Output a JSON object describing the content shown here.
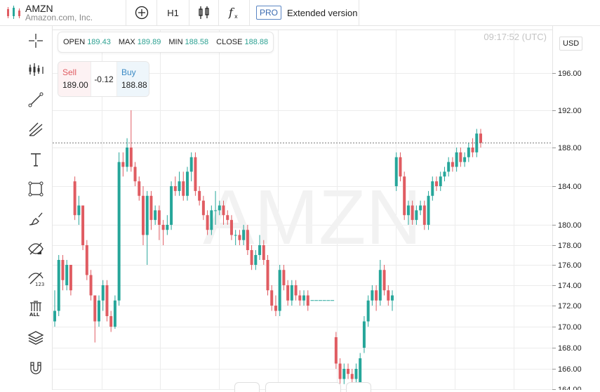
{
  "header": {
    "symbol": "AMZN",
    "company": "Amazon.com, Inc.",
    "timeframe": "H1",
    "pro_badge": "PRO",
    "extended_label": "Extended version"
  },
  "chart_header": {
    "time": "09:17:52 (UTC)",
    "currency": "USD",
    "open_label": "OPEN",
    "open_value": "189.43",
    "max_label": "MAX",
    "max_value": "189.89",
    "min_label": "MIN",
    "min_value": "188.58",
    "close_label": "CLOSE",
    "close_value": "188.88"
  },
  "trade": {
    "sell_label": "Sell",
    "sell_price": "189.00",
    "spread": "-0.12",
    "buy_label": "Buy",
    "buy_price": "188.88"
  },
  "watermark": "AMZN",
  "colors": {
    "up": "#26a69a",
    "down": "#e05c62",
    "accent": "#3a6ab0"
  },
  "chart_data": {
    "type": "candlestick",
    "y_ticks": [
      "196.00",
      "192.00",
      "188.00",
      "184.00",
      "180.00",
      "178.00",
      "176.00",
      "174.00",
      "172.00",
      "170.00",
      "168.00",
      "166.00",
      "164.00"
    ],
    "current_price": 188.5,
    "candles": [
      [
        170.5,
        171.5,
        173.5,
        170.0
      ],
      [
        171.5,
        176.5,
        177.0,
        171.0
      ],
      [
        176.5,
        174.5,
        177.0,
        173.5
      ],
      [
        174.0,
        176.0,
        176.5,
        173.5
      ],
      [
        176.0,
        173.5,
        176.0,
        173.0
      ],
      [
        184.5,
        181.0,
        185.0,
        180.5
      ],
      [
        181.0,
        182.0,
        183.0,
        180.0
      ],
      [
        182.0,
        178.0,
        182.0,
        177.5
      ],
      [
        178.0,
        175.0,
        178.5,
        174.5
      ],
      [
        175.0,
        173.0,
        175.5,
        172.5
      ],
      [
        173.0,
        170.5,
        173.0,
        168.5
      ],
      [
        170.5,
        172.5,
        173.0,
        170.0
      ],
      [
        172.5,
        174.0,
        174.5,
        171.5
      ],
      [
        174.0,
        171.0,
        174.5,
        170.5
      ],
      [
        171.0,
        170.0,
        171.5,
        169.5
      ],
      [
        170.0,
        172.5,
        173.0,
        169.8
      ],
      [
        172.5,
        186.5,
        187.5,
        172.0
      ],
      [
        186.5,
        186.0,
        187.5,
        185.0
      ],
      [
        186.0,
        188.0,
        189.0,
        185.5
      ],
      [
        188.0,
        186.0,
        192.0,
        185.5
      ],
      [
        186.0,
        184.5,
        186.5,
        184.0
      ],
      [
        184.5,
        183.0,
        185.0,
        182.5
      ],
      [
        183.0,
        179.0,
        184.0,
        178.0
      ],
      [
        179.0,
        183.0,
        183.5,
        176.0
      ],
      [
        183.0,
        180.5,
        183.5,
        179.5
      ],
      [
        180.5,
        181.5,
        182.0,
        180.0
      ],
      [
        181.5,
        180.0,
        182.0,
        178.5
      ],
      [
        180.0,
        179.5,
        180.5,
        178.0
      ],
      [
        179.5,
        180.0,
        181.0,
        179.0
      ],
      [
        180.0,
        184.0,
        184.5,
        179.5
      ],
      [
        184.0,
        183.5,
        185.0,
        183.0
      ],
      [
        183.5,
        184.5,
        185.5,
        183.0
      ],
      [
        184.5,
        183.0,
        185.5,
        182.5
      ],
      [
        183.0,
        185.5,
        186.0,
        182.5
      ],
      [
        185.5,
        187.0,
        187.5,
        184.5
      ],
      [
        187.0,
        183.5,
        187.5,
        183.0
      ],
      [
        183.5,
        182.5,
        184.0,
        182.0
      ],
      [
        182.5,
        181.0,
        183.0,
        180.5
      ],
      [
        181.0,
        179.5,
        181.5,
        179.0
      ],
      [
        179.5,
        181.5,
        182.0,
        179.0
      ],
      [
        181.5,
        181.5,
        183.5,
        180.0
      ],
      [
        181.5,
        182.0,
        182.5,
        181.0
      ],
      [
        182.0,
        181.0,
        182.5,
        180.0
      ],
      [
        181.0,
        180.5,
        181.5,
        180.0
      ],
      [
        180.5,
        179.0,
        181.0,
        178.5
      ],
      [
        179.0,
        179.0,
        179.5,
        178.0
      ],
      [
        179.0,
        178.5,
        179.5,
        178.0
      ],
      [
        178.5,
        179.5,
        180.0,
        178.0
      ],
      [
        179.5,
        177.5,
        180.0,
        177.0
      ],
      [
        177.5,
        176.0,
        178.0,
        175.5
      ],
      [
        176.0,
        177.0,
        177.5,
        175.5
      ],
      [
        177.0,
        178.0,
        179.0,
        176.5
      ],
      [
        178.0,
        176.5,
        178.5,
        176.0
      ],
      [
        176.5,
        173.5,
        177.0,
        173.0
      ],
      [
        173.5,
        172.0,
        174.0,
        171.5
      ],
      [
        172.0,
        171.5,
        173.0,
        171.0
      ],
      [
        171.5,
        175.5,
        176.0,
        171.0
      ],
      [
        175.5,
        174.0,
        176.0,
        173.5
      ],
      [
        174.0,
        172.5,
        174.5,
        172.0
      ],
      [
        172.5,
        174.0,
        174.5,
        172.0
      ],
      [
        174.0,
        173.0,
        174.5,
        172.5
      ],
      [
        173.0,
        172.5,
        173.5,
        172.0
      ],
      [
        172.5,
        173.0,
        173.5,
        172.0
      ],
      [
        173.0,
        172.0,
        173.5,
        171.5
      ],
      [
        172.5,
        172.5,
        172.5,
        172.5
      ],
      [
        172.5,
        172.5,
        172.5,
        172.5
      ],
      [
        172.5,
        172.5,
        172.5,
        172.5
      ],
      [
        172.5,
        172.5,
        172.5,
        172.5
      ],
      [
        172.5,
        172.5,
        172.5,
        172.5
      ],
      [
        172.5,
        172.5,
        172.5,
        172.5
      ],
      [
        169.0,
        166.5,
        169.5,
        166.0
      ],
      [
        166.5,
        165.0,
        167.0,
        164.5
      ],
      [
        165.0,
        166.0,
        166.5,
        164.5
      ],
      [
        166.0,
        165.5,
        166.5,
        165.0
      ],
      [
        165.5,
        165.0,
        166.0,
        164.5
      ],
      [
        165.0,
        166.0,
        166.5,
        164.5
      ],
      [
        164.5,
        167.0,
        167.5,
        164.0
      ],
      [
        168.0,
        170.5,
        171.0,
        167.5
      ],
      [
        170.5,
        172.5,
        173.0,
        170.0
      ],
      [
        172.5,
        173.5,
        174.0,
        172.0
      ],
      [
        173.5,
        172.5,
        174.0,
        171.5
      ],
      [
        172.5,
        175.5,
        176.5,
        172.0
      ],
      [
        175.5,
        173.5,
        176.0,
        173.0
      ],
      [
        173.5,
        172.5,
        174.0,
        172.0
      ],
      [
        172.5,
        173.0,
        173.5,
        171.5
      ],
      [
        184.0,
        187.0,
        187.5,
        183.5
      ],
      [
        187.0,
        185.0,
        187.5,
        184.5
      ],
      [
        185.0,
        181.0,
        185.5,
        180.5
      ],
      [
        181.0,
        182.0,
        182.5,
        180.0
      ],
      [
        182.0,
        180.5,
        182.5,
        180.0
      ],
      [
        180.5,
        181.5,
        182.0,
        180.0
      ],
      [
        181.5,
        182.0,
        182.5,
        181.0
      ],
      [
        182.0,
        180.0,
        182.5,
        179.5
      ],
      [
        180.0,
        183.0,
        183.5,
        179.5
      ],
      [
        183.0,
        184.5,
        185.0,
        182.5
      ],
      [
        184.5,
        184.0,
        185.0,
        183.5
      ],
      [
        184.0,
        185.0,
        185.5,
        183.5
      ],
      [
        185.0,
        185.5,
        186.0,
        184.5
      ],
      [
        185.5,
        186.5,
        187.0,
        185.0
      ],
      [
        186.5,
        186.0,
        187.0,
        185.5
      ],
      [
        186.0,
        187.5,
        188.0,
        185.5
      ],
      [
        187.5,
        186.5,
        188.0,
        186.0
      ],
      [
        186.5,
        187.0,
        187.5,
        186.0
      ],
      [
        187.0,
        188.0,
        188.5,
        186.5
      ],
      [
        188.0,
        187.5,
        189.0,
        187.0
      ],
      [
        187.5,
        189.5,
        190.0,
        187.0
      ],
      [
        189.5,
        188.5,
        190.0,
        188.0
      ]
    ]
  }
}
